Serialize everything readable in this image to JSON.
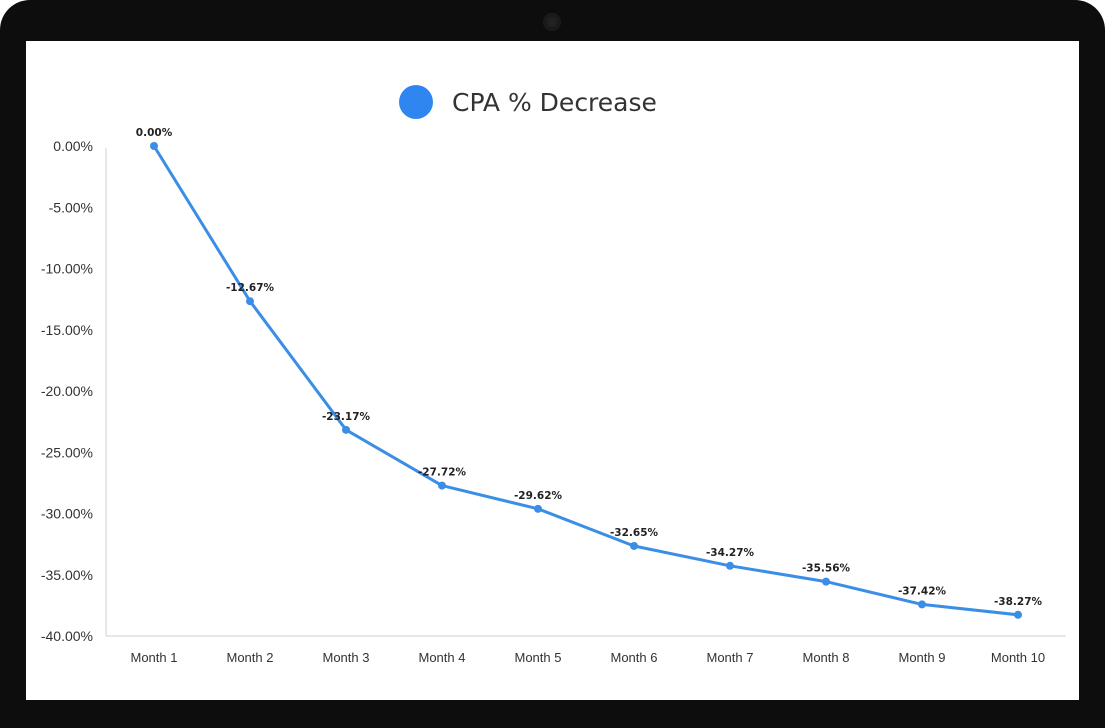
{
  "chart_data": {
    "type": "line",
    "categories": [
      "Month 1",
      "Month 2",
      "Month 3",
      "Month 4",
      "Month 5",
      "Month 6",
      "Month 7",
      "Month 8",
      "Month 9",
      "Month 10"
    ],
    "series": [
      {
        "name": "CPA % Decrease",
        "values": [
          0.0,
          -12.67,
          -23.17,
          -27.72,
          -29.62,
          -32.65,
          -34.27,
          -35.56,
          -37.42,
          -38.27
        ],
        "labels": [
          "0.00%",
          "-12.67%",
          "-23.17%",
          "-27.72%",
          "-29.62%",
          "-32.65%",
          "-34.27%",
          "-35.56%",
          "-37.42%",
          "-38.27%"
        ]
      }
    ],
    "y_ticks": [
      "0.00%",
      "-5.00%",
      "-10.00%",
      "-15.00%",
      "-20.00%",
      "-25.00%",
      "-30.00%",
      "-35.00%",
      "-40.00%"
    ],
    "ylim": [
      -40,
      0
    ],
    "grid": false,
    "legend_position": "top-center",
    "line_color": "#3a8ee6",
    "legend_color": "#2f86f0"
  }
}
